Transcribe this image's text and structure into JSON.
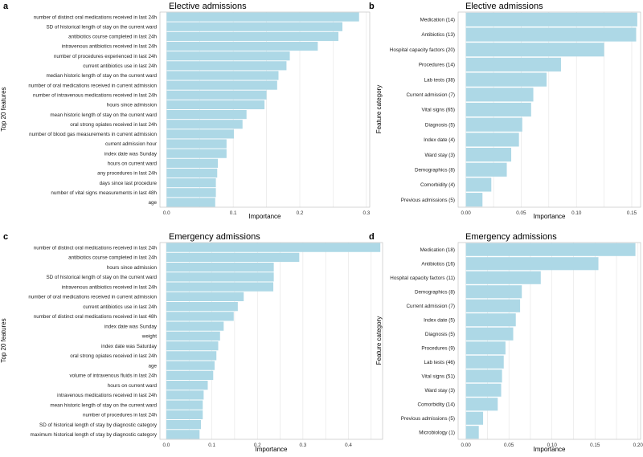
{
  "chart_data": [
    {
      "panel": "a",
      "type": "bar",
      "orientation": "horizontal",
      "title": "Elective admissions",
      "xlabel": "Importance",
      "ylabel": "Top 20 features",
      "xlim": [
        -0.01,
        0.305
      ],
      "xticks": [
        0.0,
        0.1,
        0.2,
        0.3
      ],
      "xtick_labels": [
        "0.0",
        "0.1",
        "0.2",
        "0.3"
      ],
      "categories": [
        "number of distinct oral medications received in last 24h",
        "SD of historical length of stay on the current ward",
        "antibiotics course completed in last 24h",
        "intravenous antibiotics received in last 24h",
        "number of procedures experienced in last 24h",
        "current antibiotics use in last 24h",
        "median historic length of stay on the current ward",
        "number of oral medications received in current admission",
        "number of intravenous medications received in last 24h",
        "hours since admission",
        "mean historic length of stay on the current ward",
        "oral strong opiates received in last 24h",
        "number of blood gas measurements in current admission",
        "current admission hour",
        "index date was Sunday",
        "hours on current ward",
        "any procedures in last 24h",
        "days since last procedure",
        "number of vital signs measurements in last 48h",
        "age"
      ],
      "values": [
        0.289,
        0.264,
        0.258,
        0.227,
        0.185,
        0.18,
        0.168,
        0.166,
        0.15,
        0.147,
        0.12,
        0.114,
        0.101,
        0.09,
        0.09,
        0.077,
        0.076,
        0.074,
        0.074,
        0.073
      ]
    },
    {
      "panel": "b",
      "type": "bar",
      "orientation": "horizontal",
      "title": "Elective admissions",
      "xlabel": "Importance",
      "ylabel": "Feature category",
      "xlim": [
        -0.007,
        0.158
      ],
      "xticks": [
        0.0,
        0.05,
        0.1,
        0.15
      ],
      "xtick_labels": [
        "0.00",
        "0.05",
        "0.10",
        "0.15"
      ],
      "categories": [
        "Medication (14)",
        "Antibiotics (13)",
        "Hospital capacity factors (20)",
        "Procedures (14)",
        "Lab tests (38)",
        "Current admission (7)",
        "Vital signs (65)",
        "Diagnosis (5)",
        "Index date (4)",
        "Ward stay (3)",
        "Demographics (8)",
        "Comorbidity (4)",
        "Previous admissions (5)"
      ],
      "values": [
        0.155,
        0.154,
        0.125,
        0.086,
        0.073,
        0.061,
        0.059,
        0.051,
        0.048,
        0.041,
        0.037,
        0.023,
        0.015
      ]
    },
    {
      "panel": "c",
      "type": "bar",
      "orientation": "horizontal",
      "title": "Emergency admissions",
      "xlabel": "Importance",
      "ylabel": "Top 20 features",
      "xlim": [
        -0.014,
        0.475
      ],
      "xticks": [
        0.0,
        0.1,
        0.2,
        0.3,
        0.4
      ],
      "xtick_labels": [
        "0.0",
        "0.1",
        "0.2",
        "0.3",
        "0.4"
      ],
      "categories": [
        "number of distinct oral medications received in last 24h",
        "antibiotics course completed in last 24h",
        "hours since admission",
        "SD of historical length of stay on the current ward",
        "intravenous antibiotics received in last 24h",
        "number of oral medications received in current admission",
        "current antibiotics use in last 24h",
        "number of distinct oral medications received in last 48h",
        "index date was Sunday",
        "weight",
        "index date was Saturday",
        "oral strong opiates received in last 24h",
        "age",
        "volume of intravenous fluids in last 24h",
        "hours on current ward",
        "intravenous medications received in last 24h",
        "mean historic length of stay on the current ward",
        "number of procedures in last 24h",
        "SD of historical length of stay by diagnostic category",
        "maximum historical length of stay by diagnostic category"
      ],
      "values": [
        0.47,
        0.292,
        0.236,
        0.236,
        0.235,
        0.17,
        0.157,
        0.148,
        0.126,
        0.118,
        0.114,
        0.11,
        0.106,
        0.103,
        0.091,
        0.082,
        0.08,
        0.08,
        0.076,
        0.073
      ]
    },
    {
      "panel": "d",
      "type": "bar",
      "orientation": "horizontal",
      "title": "Emergency admissions",
      "xlabel": "Importance",
      "ylabel": "Feature category",
      "xlim": [
        -0.009,
        0.203
      ],
      "xticks": [
        0.0,
        0.05,
        0.1,
        0.15,
        0.2
      ],
      "xtick_labels": [
        "0.00",
        "0.05",
        "0.10",
        "0.15",
        "0.20"
      ],
      "categories": [
        "Medication (18)",
        "Antibiotics (16)",
        "Hospital capacity factors (11)",
        "Demographics (8)",
        "Current admission (7)",
        "Index date (5)",
        "Diagnosis (5)",
        "Procedures (9)",
        "Lab tests (46)",
        "Vital signs (51)",
        "Ward stay (3)",
        "Comorbidity (14)",
        "Previous admissions (5)",
        "Microbiology (1)"
      ],
      "values": [
        0.197,
        0.154,
        0.087,
        0.065,
        0.063,
        0.058,
        0.055,
        0.046,
        0.044,
        0.042,
        0.041,
        0.037,
        0.02,
        0.015
      ]
    }
  ]
}
